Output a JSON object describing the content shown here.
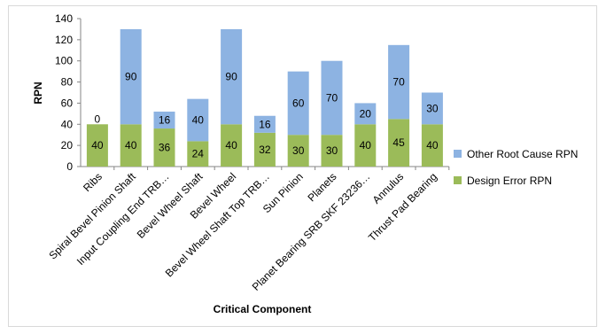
{
  "chart_data": {
    "type": "bar",
    "stacked": true,
    "title": "",
    "xlabel": "Critical Component",
    "ylabel": "RPN",
    "ylim": [
      0,
      140
    ],
    "ytick_step": 20,
    "grid": false,
    "legend_position": "right",
    "categories": [
      "Ribs",
      "Spiral Bevel Pinion Shaft",
      "Input Coupling End TRB…",
      "Bevel Wheel Shaft",
      "Bevel Wheel",
      "Bevel Wheel Shaft Top TRB…",
      "Sun Pinion",
      "Planets",
      "Planet Bearing SRB SKF 23236…",
      "Annulus",
      "Thrust Pad Bearing"
    ],
    "series": [
      {
        "name": "Design Error RPN",
        "color": "#9bbb59",
        "values": [
          40,
          40,
          36,
          24,
          40,
          32,
          30,
          30,
          40,
          45,
          40
        ]
      },
      {
        "name": "Other Root Cause RPN",
        "color": "#8db3e2",
        "values": [
          0,
          90,
          16,
          40,
          90,
          16,
          60,
          70,
          20,
          70,
          30
        ]
      }
    ]
  }
}
